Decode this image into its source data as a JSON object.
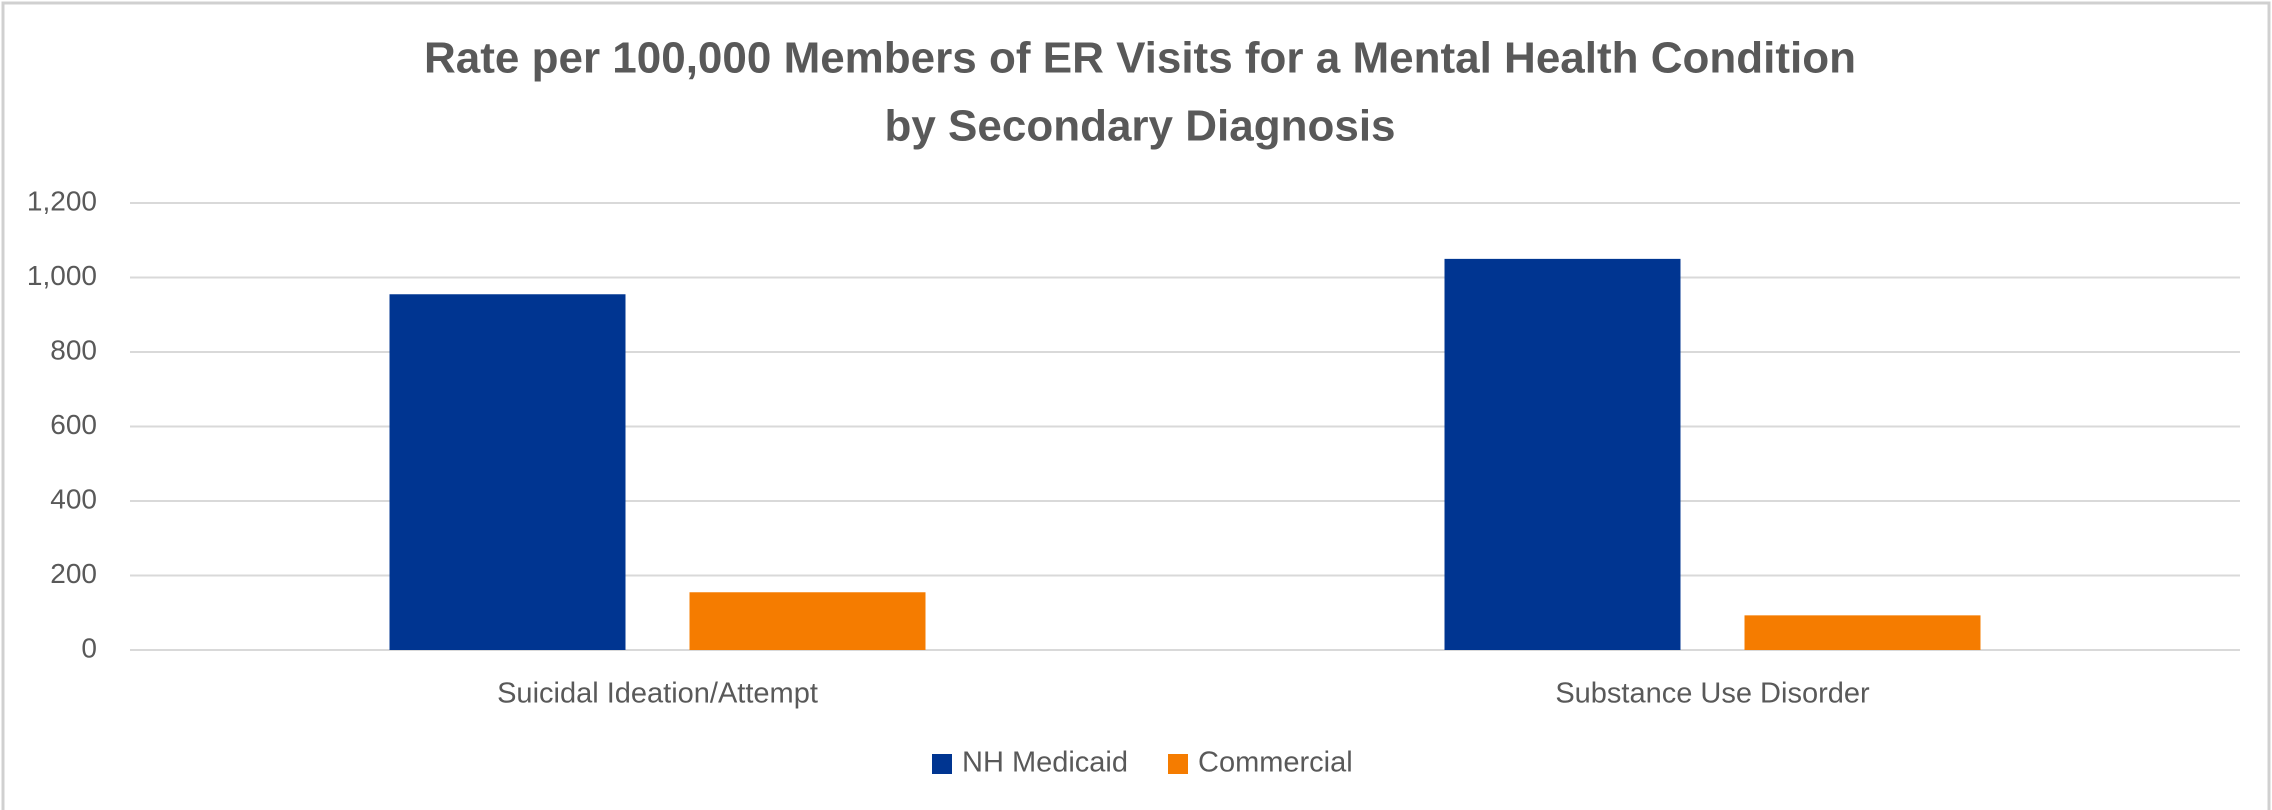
{
  "chart_data": {
    "type": "bar",
    "title": [
      "Rate per 100,000 Members of ER Visits for a Mental Health Condition",
      "by Secondary Diagnosis"
    ],
    "categories": [
      "Suicidal Ideation/Attempt",
      "Substance Use Disorder"
    ],
    "series": [
      {
        "name": "NH Medicaid",
        "color": "#003591",
        "values": [
          955,
          1050
        ]
      },
      {
        "name": "Commercial",
        "color": "#f57c00",
        "values": [
          155,
          93
        ]
      }
    ],
    "ylim": [
      0,
      1200
    ],
    "yticks": [
      0,
      200,
      400,
      600,
      800,
      {
        "value": 1000,
        "label": "1,000"
      },
      {
        "value": 1200,
        "label": "1,200"
      }
    ],
    "grid": true,
    "legend": "bottom"
  }
}
